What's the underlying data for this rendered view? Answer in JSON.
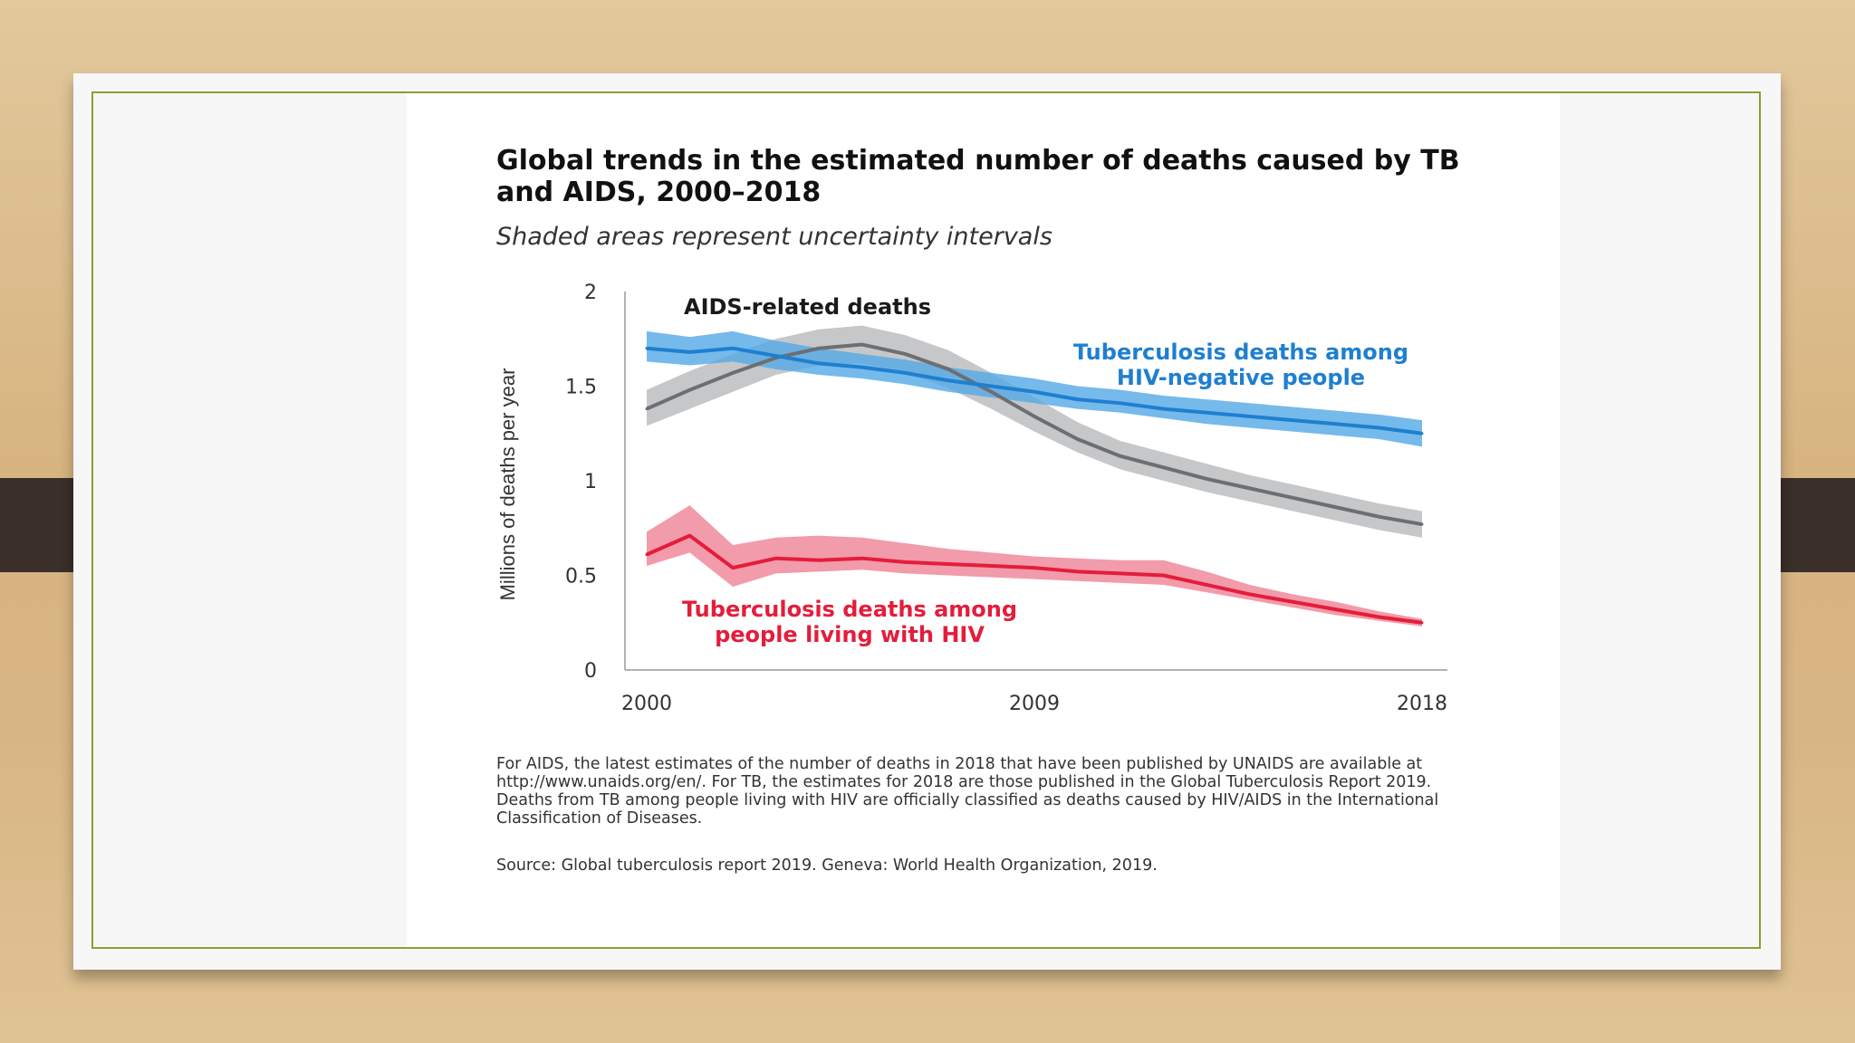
{
  "title": "Global trends in the estimated number of deaths caused by TB and AIDS, 2000–2018",
  "subtitle": "Shaded areas represent uncertainty intervals",
  "notes": "For AIDS, the latest estimates of the number of deaths in 2018 that have been published by UNAIDS are available at http://www.unaids.org/en/. For TB, the estimates for 2018 are those published in the Global Tuberculosis Report 2019. Deaths from TB among people living with HIV are officially classified as deaths caused by HIV/AIDS in the International Classification of Diseases.",
  "source": "Source: Global tuberculosis report 2019. Geneva: World Health Organization, 2019.",
  "colors": {
    "aids": "#6d6e71",
    "aids_band": "#bcbdc0",
    "tb_hiv_neg": "#1f7fd0",
    "tb_hiv_neg_band": "#52a9e6",
    "tb_hiv_pos": "#e41d3b",
    "tb_hiv_pos_band": "#f08a9b",
    "frame": "#88a136"
  },
  "chart_data": {
    "type": "line",
    "title": "Global trends in the estimated number of deaths caused by TB and AIDS, 2000–2018",
    "subtitle": "Shaded areas represent uncertainty intervals",
    "xlabel": "",
    "ylabel": "Millions of deaths per year",
    "xlim": [
      2000,
      2018
    ],
    "ylim": [
      0,
      2
    ],
    "x_ticks": [
      2000,
      2009,
      2018
    ],
    "x_tick_labels": [
      "2000",
      "2009",
      "2018"
    ],
    "y_ticks": [
      0,
      0.5,
      1,
      1.5,
      2
    ],
    "y_tick_labels": [
      "0",
      "0.5",
      "1",
      "1.5",
      "2"
    ],
    "x": [
      2000,
      2001,
      2002,
      2003,
      2004,
      2005,
      2006,
      2007,
      2008,
      2009,
      2010,
      2011,
      2012,
      2013,
      2014,
      2015,
      2016,
      2017,
      2018
    ],
    "series": [
      {
        "name": "AIDS-related deaths",
        "label": "AIDS-related deaths",
        "values": [
          1.38,
          1.48,
          1.57,
          1.65,
          1.7,
          1.72,
          1.67,
          1.59,
          1.47,
          1.34,
          1.22,
          1.13,
          1.07,
          1.01,
          0.96,
          0.91,
          0.86,
          0.81,
          0.77
        ],
        "lower": [
          1.29,
          1.38,
          1.47,
          1.56,
          1.61,
          1.62,
          1.57,
          1.49,
          1.38,
          1.26,
          1.15,
          1.06,
          1.0,
          0.94,
          0.89,
          0.84,
          0.79,
          0.74,
          0.7
        ],
        "upper": [
          1.48,
          1.58,
          1.67,
          1.75,
          1.8,
          1.82,
          1.77,
          1.69,
          1.57,
          1.44,
          1.31,
          1.21,
          1.15,
          1.09,
          1.03,
          0.98,
          0.93,
          0.88,
          0.84
        ]
      },
      {
        "name": "Tuberculosis deaths among HIV-negative people",
        "label_lines": [
          "Tuberculosis deaths among",
          "HIV-negative people"
        ],
        "values": [
          1.7,
          1.68,
          1.7,
          1.66,
          1.62,
          1.6,
          1.57,
          1.53,
          1.5,
          1.47,
          1.43,
          1.41,
          1.38,
          1.36,
          1.34,
          1.32,
          1.3,
          1.28,
          1.25
        ],
        "lower": [
          1.63,
          1.61,
          1.63,
          1.59,
          1.56,
          1.54,
          1.51,
          1.47,
          1.44,
          1.41,
          1.38,
          1.36,
          1.33,
          1.3,
          1.28,
          1.26,
          1.24,
          1.22,
          1.18
        ],
        "upper": [
          1.79,
          1.76,
          1.79,
          1.74,
          1.7,
          1.67,
          1.64,
          1.6,
          1.57,
          1.54,
          1.5,
          1.48,
          1.45,
          1.43,
          1.41,
          1.39,
          1.37,
          1.35,
          1.32
        ]
      },
      {
        "name": "Tuberculosis deaths among people living with HIV",
        "label_lines": [
          "Tuberculosis deaths among",
          "people living with HIV"
        ],
        "values": [
          0.61,
          0.71,
          0.54,
          0.59,
          0.58,
          0.59,
          0.57,
          0.56,
          0.55,
          0.54,
          0.52,
          0.51,
          0.5,
          0.45,
          0.4,
          0.36,
          0.32,
          0.28,
          0.25
        ],
        "lower": [
          0.55,
          0.62,
          0.44,
          0.51,
          0.52,
          0.53,
          0.51,
          0.5,
          0.49,
          0.48,
          0.47,
          0.46,
          0.45,
          0.41,
          0.37,
          0.33,
          0.29,
          0.26,
          0.23
        ],
        "upper": [
          0.73,
          0.87,
          0.66,
          0.7,
          0.71,
          0.7,
          0.67,
          0.64,
          0.62,
          0.6,
          0.59,
          0.58,
          0.58,
          0.52,
          0.45,
          0.4,
          0.36,
          0.31,
          0.27
        ]
      }
    ]
  }
}
